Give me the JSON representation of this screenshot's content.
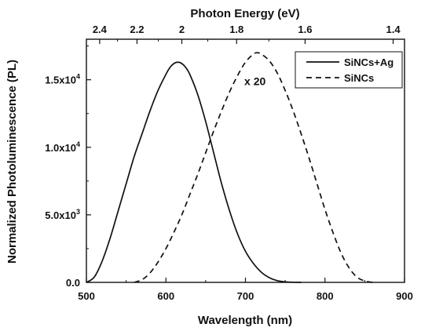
{
  "chart_data": {
    "type": "line",
    "xlabel": "Wavelength (nm)",
    "ylabel": "Normalized Photoluminescence (PL)",
    "top_xlabel": "Photon Energy (eV)",
    "xlim": [
      500,
      900
    ],
    "ylim": [
      0,
      18000
    ],
    "x_ticks": [
      {
        "value": 500,
        "label": "500"
      },
      {
        "value": 600,
        "label": "600"
      },
      {
        "value": 700,
        "label": "700"
      },
      {
        "value": 800,
        "label": "800"
      },
      {
        "value": 900,
        "label": "900"
      }
    ],
    "y_ticks": [
      {
        "value": 0,
        "base": "0.0",
        "exp": ""
      },
      {
        "value": 5000,
        "base": "5.0x10",
        "exp": "3"
      },
      {
        "value": 10000,
        "base": "1.0x10",
        "exp": "4"
      },
      {
        "value": 15000,
        "base": "1.5x10",
        "exp": "4"
      }
    ],
    "top_x_ticks": [
      {
        "energy": 2.4,
        "label": "2.4"
      },
      {
        "energy": 2.2,
        "label": "2.2"
      },
      {
        "energy": 2.0,
        "label": "2"
      },
      {
        "energy": 1.8,
        "label": "1.8"
      },
      {
        "energy": 1.6,
        "label": "1.6"
      },
      {
        "energy": 1.4,
        "label": "1.4"
      }
    ],
    "grid": false,
    "legend_position": "top-right",
    "series": [
      {
        "name": "SiNCs+Ag",
        "style": "solid",
        "color": "#111111",
        "x": [
          500,
          510,
          520,
          530,
          540,
          550,
          560,
          570,
          580,
          590,
          600,
          605,
          610,
          615,
          620,
          625,
          630,
          640,
          650,
          660,
          670,
          680,
          690,
          700,
          710,
          720,
          730,
          740,
          750,
          760,
          770
        ],
        "y": [
          0,
          400,
          1600,
          3300,
          5300,
          7300,
          9300,
          11000,
          12700,
          14200,
          15400,
          15900,
          16200,
          16300,
          16200,
          15900,
          15400,
          13900,
          11900,
          9600,
          7300,
          5300,
          3600,
          2300,
          1400,
          750,
          350,
          130,
          40,
          10,
          0
        ]
      },
      {
        "name": "SiNCs",
        "style": "dashed",
        "color": "#111111",
        "x": [
          560,
          570,
          580,
          590,
          600,
          610,
          620,
          630,
          640,
          650,
          660,
          670,
          680,
          690,
          700,
          710,
          715,
          720,
          730,
          740,
          750,
          760,
          770,
          780,
          790,
          800,
          810,
          820,
          830,
          840,
          850,
          860
        ],
        "y": [
          0,
          200,
          700,
          1500,
          2500,
          3700,
          5000,
          6500,
          8000,
          9600,
          11200,
          12700,
          14100,
          15300,
          16300,
          16900,
          17000,
          16900,
          16400,
          15500,
          14200,
          12700,
          11000,
          9200,
          7300,
          5400,
          3700,
          2200,
          1100,
          400,
          100,
          0
        ]
      }
    ],
    "annotations": [
      {
        "text": "x 20",
        "x": 712,
        "y": 14600
      }
    ]
  }
}
